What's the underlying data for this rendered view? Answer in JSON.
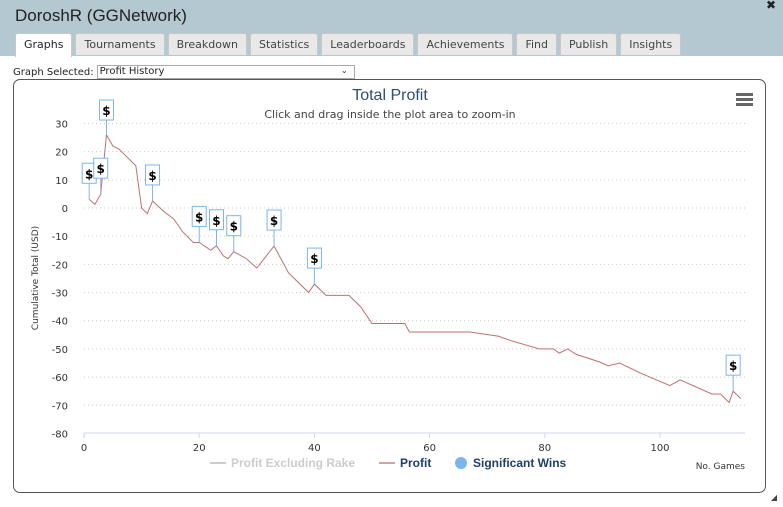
{
  "window": {
    "title": "DoroshR (GGNetwork)",
    "close_icon": "close-icon"
  },
  "tabs": [
    {
      "label": "Graphs",
      "active": true
    },
    {
      "label": "Tournaments"
    },
    {
      "label": "Breakdown"
    },
    {
      "label": "Statistics"
    },
    {
      "label": "Leaderboards"
    },
    {
      "label": "Achievements"
    },
    {
      "label": "Find"
    },
    {
      "label": "Publish"
    },
    {
      "label": "Insights"
    }
  ],
  "graph_select": {
    "label": "Graph Selected:",
    "value": "Profit History"
  },
  "chart_data": {
    "type": "line",
    "title": "Total Profit",
    "subtitle": "Click and drag inside the plot area to zoom-in",
    "xlabel": "No. Games",
    "ylabel": "Cumulative Total (USD)",
    "xlim": [
      0,
      115
    ],
    "ylim": [
      -80,
      30
    ],
    "xticks": [
      0,
      20,
      40,
      60,
      80,
      100
    ],
    "yticks": [
      30,
      20,
      10,
      0,
      -10,
      -20,
      -30,
      -40,
      -50,
      -60,
      -70,
      -80
    ],
    "grid": "horizontal dotted",
    "legend": {
      "placement": "bottom",
      "items": [
        {
          "name": "Profit Excluding Rake",
          "hidden": true,
          "color": "#cccccc"
        },
        {
          "name": "Profit",
          "color": "#c07070"
        },
        {
          "name": "Significant Wins",
          "color": "#7cb5ec"
        }
      ]
    },
    "series": [
      {
        "name": "Profit",
        "color": "#c07070",
        "x": [
          0.9,
          1.9,
          2.9,
          3.9,
          5,
          6,
          9,
          10,
          11,
          11.9,
          14,
          15.5,
          17.2,
          19,
          20,
          22,
          23,
          24.2,
          25,
          26,
          28.2,
          30,
          33,
          35.5,
          39,
          40,
          42,
          46,
          48,
          50,
          55.7,
          56.5,
          67,
          72,
          74,
          79,
          81.5,
          82.5,
          84,
          85.5,
          89.5,
          91,
          93,
          96.5,
          101.7,
          103.5,
          109,
          110.5,
          112,
          112.7,
          114
        ],
        "y": [
          3.1,
          1.3,
          4.9,
          26,
          22,
          21,
          15,
          0,
          -2,
          2.5,
          -1.5,
          -3.7,
          -8.6,
          -12.3,
          -12.2,
          -15,
          -13.4,
          -17,
          -18,
          -15.5,
          -18,
          -21.3,
          -13.5,
          -23,
          -30,
          -27,
          -31,
          -31,
          -35,
          -41,
          -41,
          -44,
          -44,
          -45.5,
          -47,
          -50,
          -50,
          -51.5,
          -50,
          -52,
          -54.6,
          -56,
          -55,
          -58.5,
          -63,
          -61,
          -66,
          -66,
          -69,
          -65,
          -67.6
        ]
      }
    ],
    "significant_wins": {
      "marker": "$",
      "x": [
        0.9,
        2.9,
        3.9,
        11.9,
        20,
        23,
        26,
        33,
        40,
        112.7
      ]
    }
  },
  "menu_icon": "hamburger-icon"
}
